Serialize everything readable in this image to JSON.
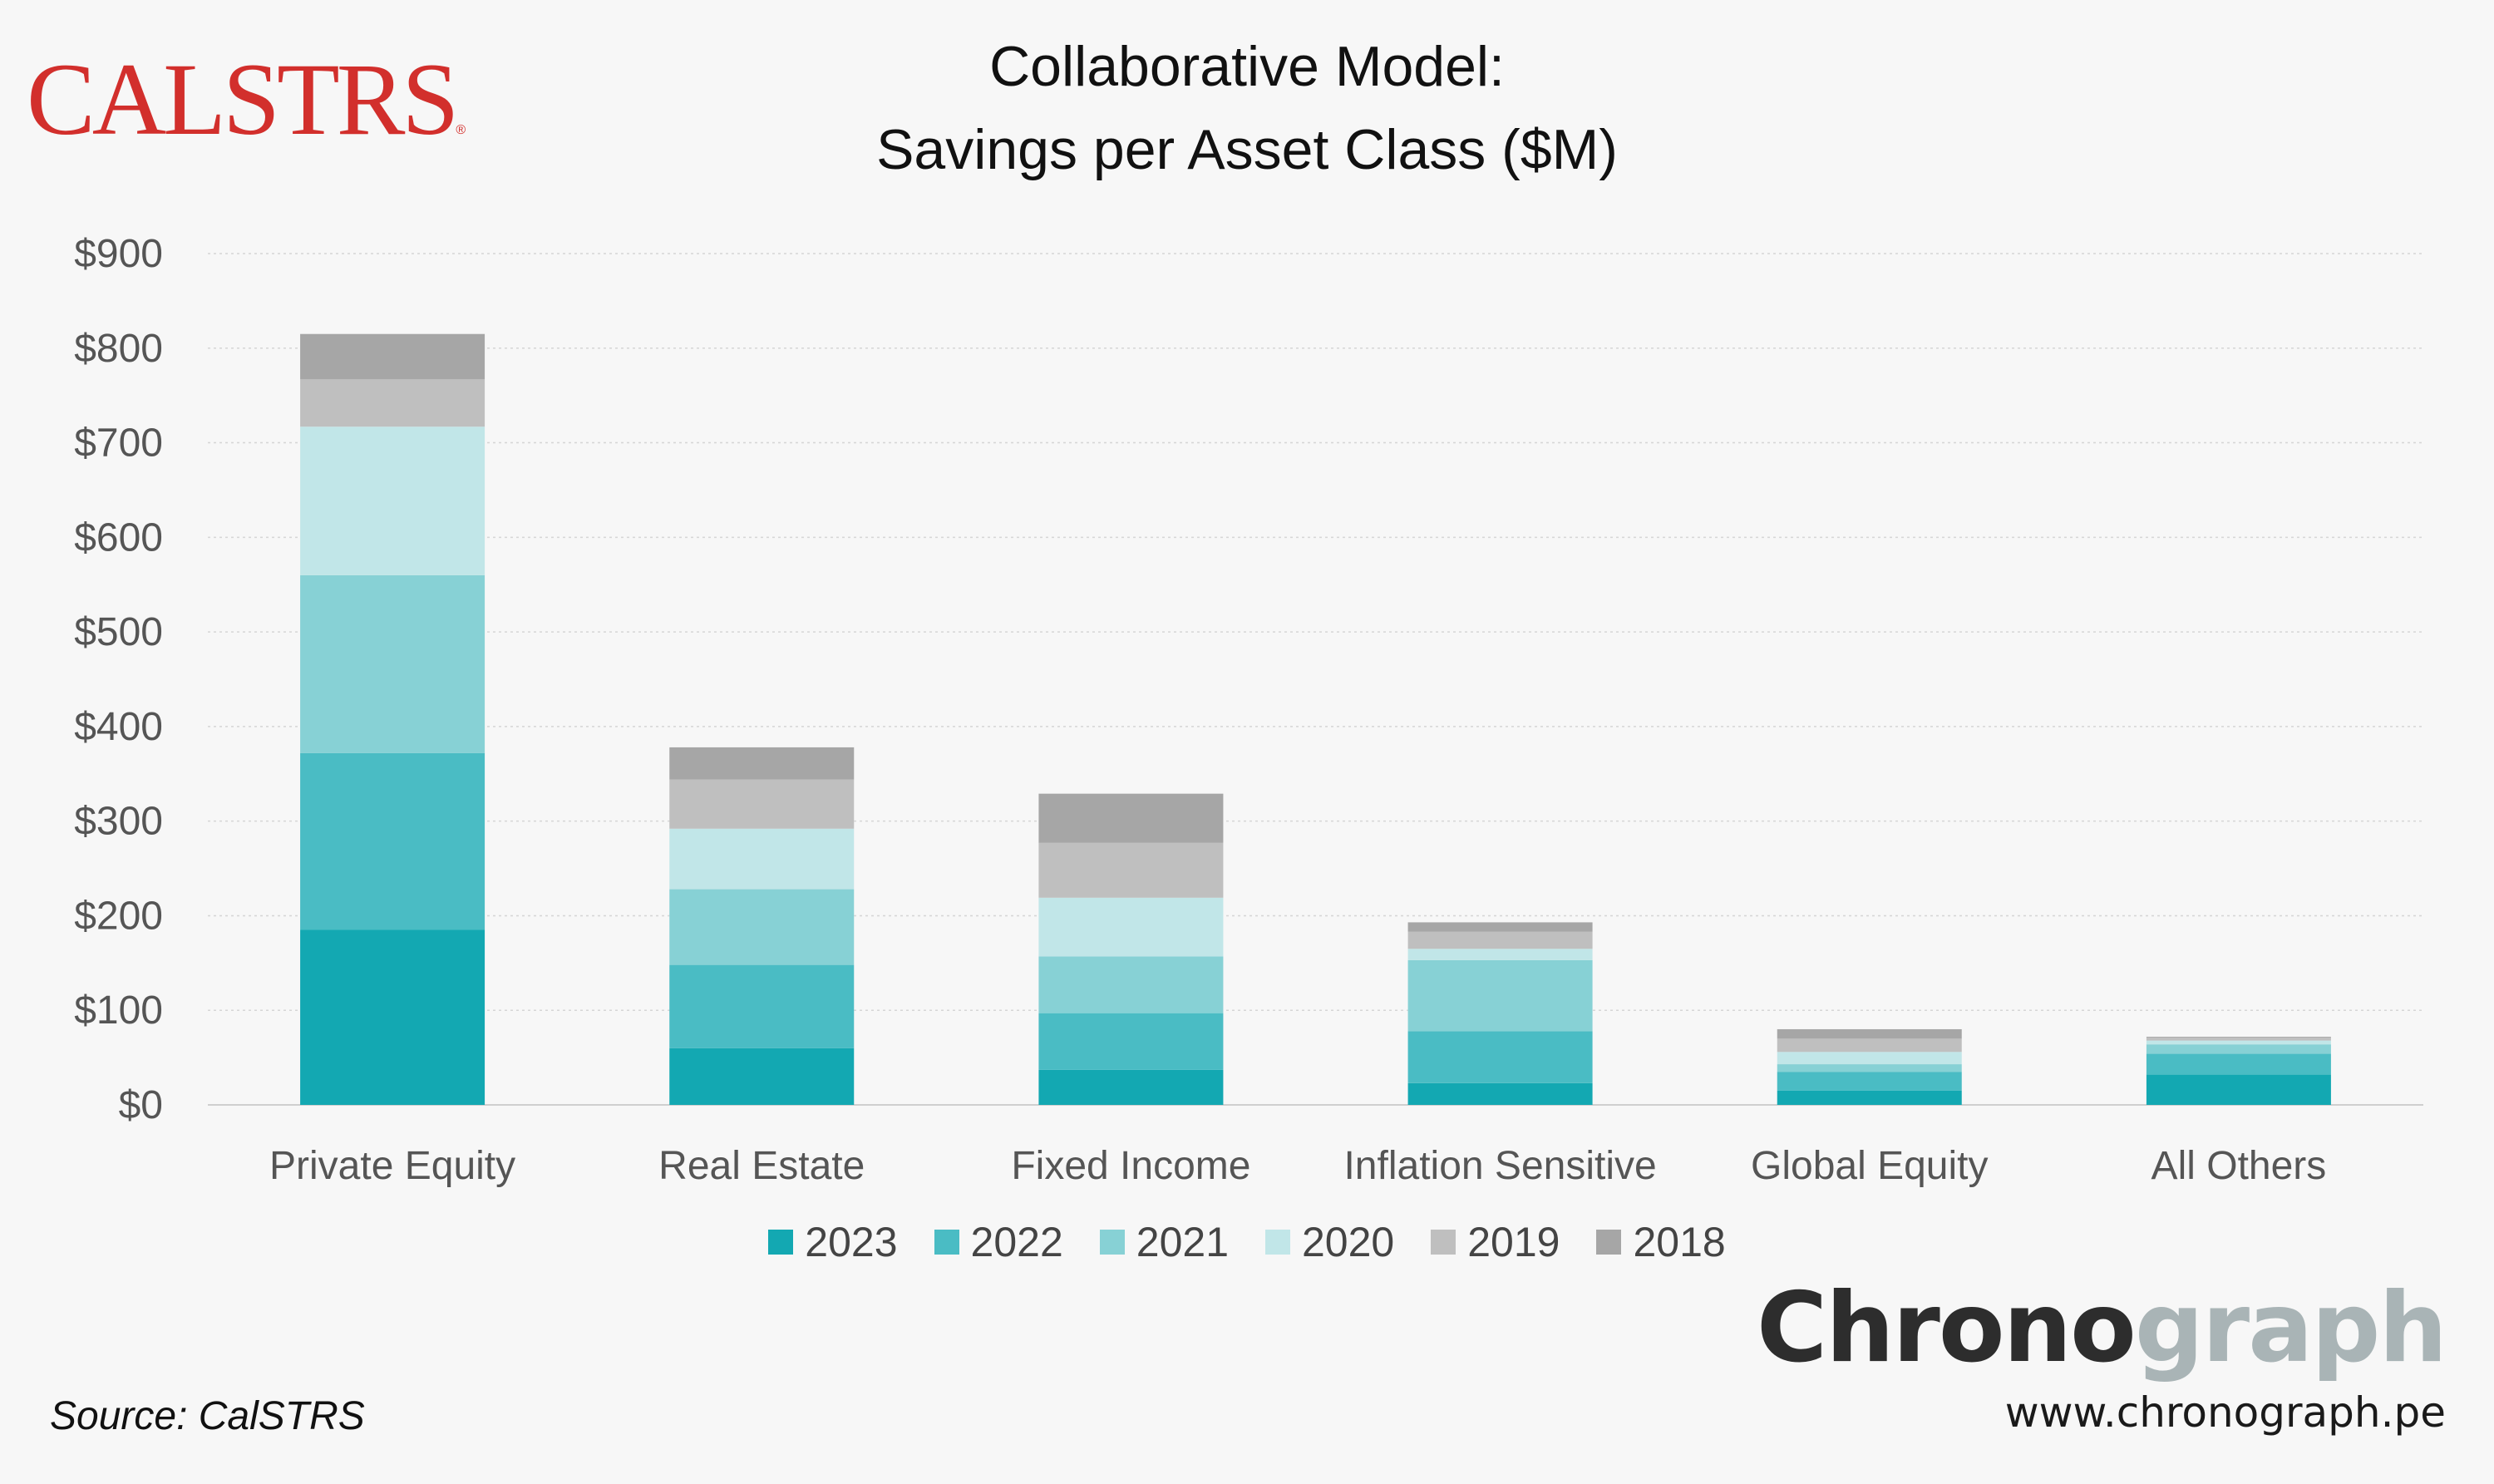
{
  "brand": {
    "calstrs_logo": "CALSTRS",
    "calstrs_reg": "®",
    "chronograph_a": "Chrono",
    "chronograph_b": "graph",
    "website": "www.chronograph.pe"
  },
  "source": "Source: CalSTRS",
  "chart_data": {
    "type": "bar",
    "stacked": true,
    "title": "Collaborative Model:",
    "subtitle": "Savings per Asset Class ($M)",
    "xlabel": "",
    "ylabel": "",
    "ylim": [
      0,
      900
    ],
    "yticks": [
      0,
      100,
      200,
      300,
      400,
      500,
      600,
      700,
      800,
      900
    ],
    "ytick_labels": [
      "$0",
      "$100",
      "$200",
      "$300",
      "$400",
      "$500",
      "$600",
      "$700",
      "$800",
      "$900"
    ],
    "grid": true,
    "legend_position": "bottom",
    "categories": [
      "Private Equity",
      "Real Estate",
      "Fixed Income",
      "Inflation Sensitive",
      "Global Equity",
      "All Others"
    ],
    "series": [
      {
        "name": "2023",
        "color": "#13a8b2",
        "values": [
          185,
          60,
          37,
          23,
          15,
          32
        ]
      },
      {
        "name": "2022",
        "color": "#4abcc4",
        "values": [
          187,
          88,
          60,
          55,
          20,
          22
        ]
      },
      {
        "name": "2021",
        "color": "#87d1d5",
        "values": [
          188,
          80,
          60,
          75,
          8,
          10
        ]
      },
      {
        "name": "2020",
        "color": "#c1e6e8",
        "values": [
          157,
          64,
          62,
          12,
          13,
          4
        ]
      },
      {
        "name": "2019",
        "color": "#bfbfbf",
        "values": [
          50,
          52,
          58,
          18,
          14,
          3
        ]
      },
      {
        "name": "2018",
        "color": "#a6a6a6",
        "values": [
          48,
          34,
          52,
          10,
          10,
          1
        ]
      }
    ]
  }
}
